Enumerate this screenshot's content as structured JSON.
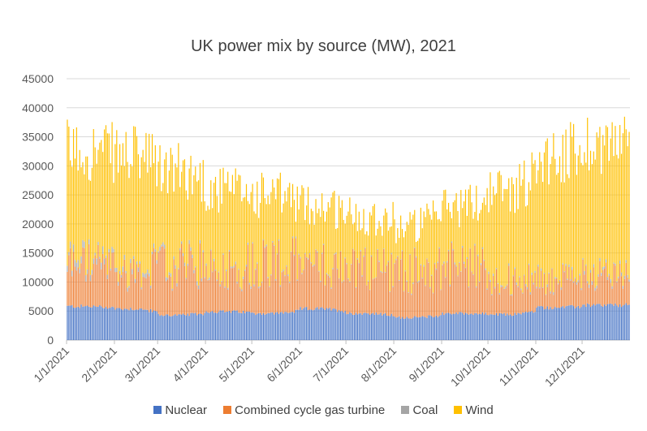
{
  "chart_data": {
    "type": "bar",
    "stacked": true,
    "title": "UK power mix by source (MW), 2021",
    "xlabel": "",
    "ylabel": "",
    "ylim": [
      0,
      45000
    ],
    "y_ticks": [
      0,
      5000,
      10000,
      15000,
      20000,
      25000,
      30000,
      35000,
      40000,
      45000
    ],
    "x_tick_labels": [
      "1/1/2021",
      "2/1/2021",
      "3/1/2021",
      "4/1/2021",
      "5/1/2021",
      "6/1/2021",
      "7/1/2021",
      "8/1/2021",
      "9/1/2021",
      "10/1/2021",
      "11/1/2021",
      "12/1/2021"
    ],
    "x_tick_day_index": [
      0,
      31,
      59,
      90,
      120,
      151,
      181,
      212,
      243,
      273,
      304,
      334
    ],
    "x_range_days": 365,
    "grid": true,
    "legend_position": "bottom",
    "series": [
      {
        "name": "Nuclear",
        "color": "#4472C4",
        "monthly_typical": [
          5800,
          5400,
          4300,
          4900,
          4600,
          5400,
          4600,
          3900,
          4600,
          4400,
          5600,
          6000
        ]
      },
      {
        "name": "Combined cycle gas turbine",
        "color": "#ED7D31",
        "monthly_typical": [
          7000,
          6000,
          8000,
          7000,
          8500,
          7000,
          7500,
          7500,
          8000,
          5500,
          4500,
          5000
        ]
      },
      {
        "name": "Coal",
        "color": "#A5A5A5",
        "monthly_typical": [
          900,
          600,
          500,
          300,
          200,
          150,
          150,
          150,
          200,
          250,
          300,
          400
        ]
      },
      {
        "name": "Wind",
        "color": "#FFC000",
        "monthly_typical": [
          22000,
          21000,
          16000,
          11000,
          11000,
          9000,
          9500,
          8500,
          8500,
          14000,
          20000,
          20000
        ]
      }
    ],
    "monthly_total_peak": [
      38000,
      37000,
      34000,
      30000,
      29000,
      27000,
      25000,
      23000,
      27000,
      30000,
      37000,
      39500
    ]
  }
}
